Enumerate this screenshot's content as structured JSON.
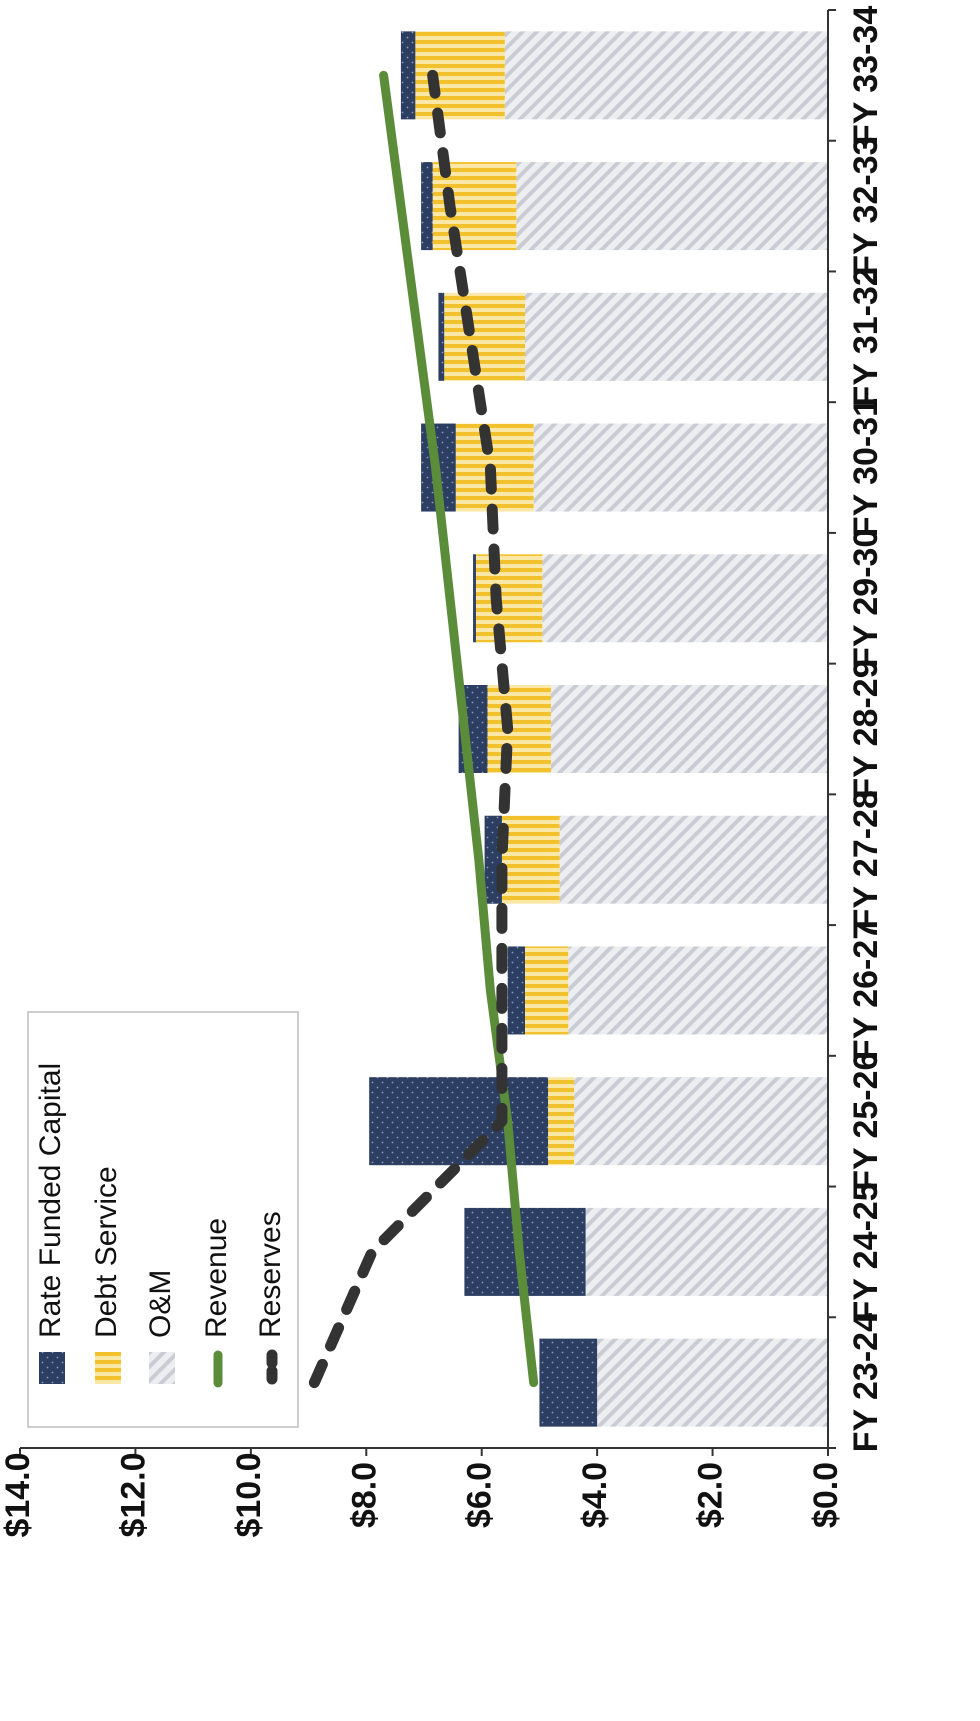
{
  "chart_data": {
    "type": "bar",
    "stacked": true,
    "orientation": "rotated-90-clockwise",
    "title": "",
    "xlabel": "",
    "ylabel": "",
    "categories": [
      "FY 23-24",
      "FY 24-25",
      "FY 25-26",
      "FY 26-27",
      "FY 27-28",
      "FY 28-29",
      "FY 29-30",
      "FY 30-31",
      "FY 31-32",
      "FY 32-33",
      "FY 33-34"
    ],
    "y_ticks": [
      "$0.0",
      "$2.0",
      "$4.0",
      "$6.0",
      "$8.0",
      "$10.0",
      "$12.0",
      "$14.0"
    ],
    "ylim": [
      0,
      14
    ],
    "bar_series": [
      {
        "name": "O&M",
        "color": "#d6d9de",
        "pattern": "diagonal-hatch",
        "values": [
          4.0,
          4.2,
          4.4,
          4.5,
          4.65,
          4.8,
          4.95,
          5.1,
          5.25,
          5.4,
          5.6
        ]
      },
      {
        "name": "Debt Service",
        "color": "#f2c94c",
        "pattern": "vertical-stripes",
        "values": [
          0.0,
          0.0,
          0.45,
          0.75,
          1.0,
          1.1,
          1.15,
          1.35,
          1.4,
          1.45,
          1.55
        ]
      },
      {
        "name": "Rate Funded Capital",
        "color": "#2d3e63",
        "pattern": "dotted",
        "values": [
          1.0,
          2.1,
          3.1,
          0.3,
          0.3,
          0.5,
          0.05,
          0.6,
          0.1,
          0.2,
          0.25
        ]
      }
    ],
    "line_series": [
      {
        "name": "Revenue",
        "color": "#5b8c3a",
        "style": "solid",
        "values": [
          5.1,
          5.35,
          5.55,
          5.85,
          6.05,
          6.3,
          6.55,
          6.8,
          7.1,
          7.4,
          7.7
        ]
      },
      {
        "name": "Reserves",
        "color": "#333333",
        "style": "dashed",
        "values": [
          8.9,
          7.9,
          5.65,
          5.65,
          5.65,
          5.55,
          5.75,
          5.85,
          6.2,
          6.55,
          6.85
        ]
      }
    ],
    "legend": {
      "placement": "bottom-left",
      "items": [
        "Rate Funded Capital",
        "Debt Service",
        "O&M",
        "Revenue",
        "Reserves"
      ]
    },
    "grid": false
  }
}
